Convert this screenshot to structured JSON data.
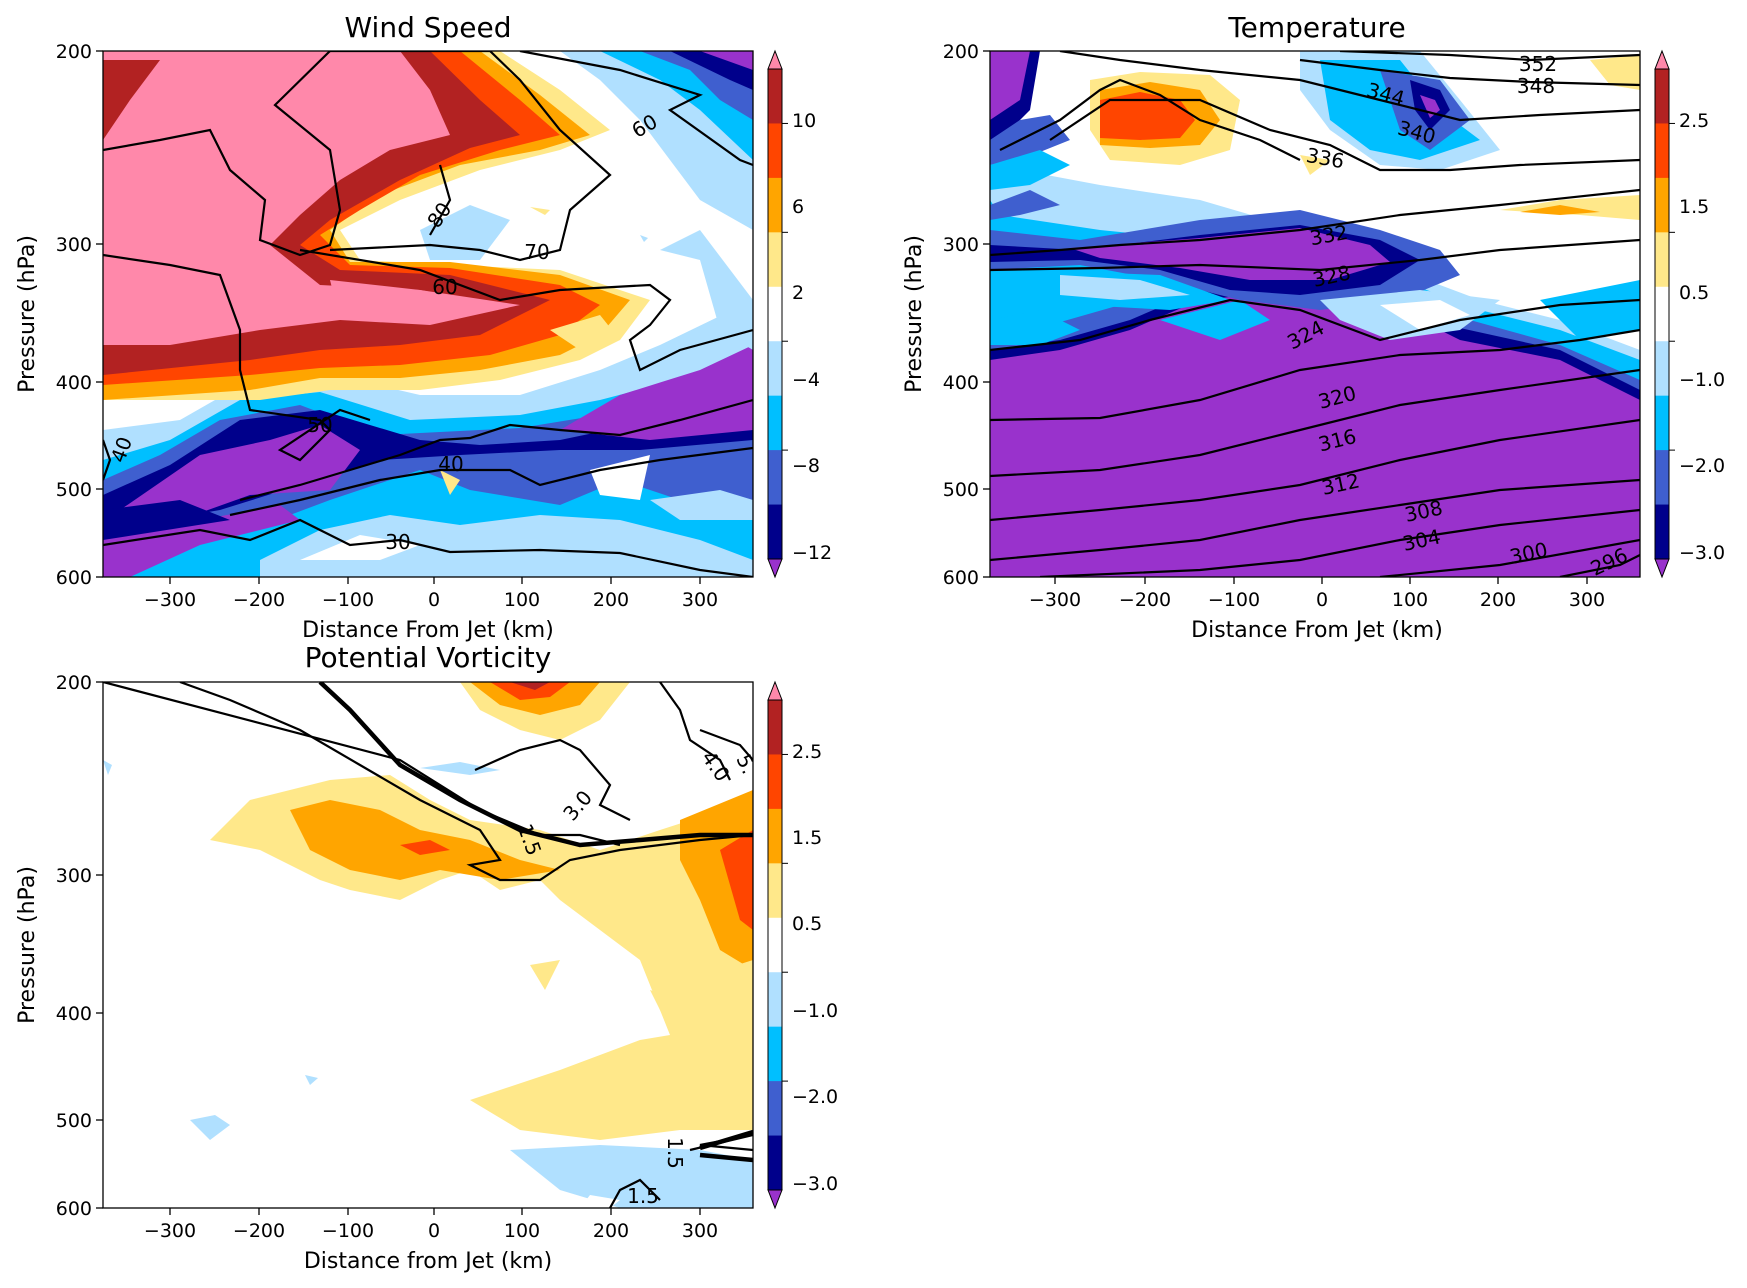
{
  "colors": {
    "levels": [
      "#9932cc",
      "#00008b",
      "#3f5fcf",
      "#00bfff",
      "#b0e0ff",
      "#ffffff",
      "#ffe88a",
      "#ffa500",
      "#ff4500",
      "#b22222",
      "#ff88aa"
    ],
    "contour": "#000000"
  },
  "panels": [
    {
      "id": "wind",
      "title": "Wind Speed",
      "xlabel": "Distance From Jet (km)",
      "ylabel": "Pressure (hPa)",
      "xticks": [
        "−300",
        "−200",
        "−100",
        "0",
        "100",
        "200",
        "300"
      ],
      "yticks": [
        "200",
        "300",
        "400",
        "500",
        "600"
      ],
      "colorbar_ticks": [
        "10",
        "6",
        "2",
        "−4",
        "−8",
        "−12"
      ],
      "contour_labels": [
        "60",
        "80",
        "70",
        "60",
        "50",
        "40",
        "40",
        "30"
      ]
    },
    {
      "id": "temp",
      "title": "Temperature",
      "xlabel": "Distance From Jet (km)",
      "ylabel": "Pressure (hPa)",
      "xticks": [
        "−300",
        "−200",
        "−100",
        "0",
        "100",
        "200",
        "300"
      ],
      "yticks": [
        "200",
        "300",
        "400",
        "500",
        "600"
      ],
      "colorbar_ticks": [
        "2.5",
        "1.5",
        "0.5",
        "−1.0",
        "−2.0",
        "−3.0"
      ],
      "contour_labels": [
        "352",
        "348",
        "344",
        "340",
        "336",
        "332",
        "328",
        "324",
        "320",
        "316",
        "312",
        "308",
        "304",
        "300",
        "296"
      ]
    },
    {
      "id": "pv",
      "title": "Potential Vorticity",
      "xlabel": "Distance from Jet (km)",
      "ylabel": "Pressure (hPa)",
      "xticks": [
        "−300",
        "−200",
        "−100",
        "0",
        "100",
        "200",
        "300"
      ],
      "yticks": [
        "200",
        "300",
        "400",
        "500",
        "600"
      ],
      "colorbar_ticks": [
        "2.5",
        "1.5",
        "0.5",
        "−1.0",
        "−2.0",
        "−3.0"
      ],
      "contour_labels": [
        "5.",
        "4.0",
        "3.0",
        "1.5",
        "1.5",
        "1.5"
      ]
    }
  ],
  "chart_data": [
    {
      "type": "heatmap",
      "title": "Wind Speed",
      "xlabel": "Distance From Jet (km)",
      "ylabel": "Pressure (hPa)",
      "xlim": [
        -370,
        360
      ],
      "ylim": [
        600,
        200
      ],
      "colorbar_levels": [
        -12,
        -10,
        -8,
        -6,
        -4,
        -1,
        2,
        4,
        6,
        8,
        10,
        12
      ],
      "colorbar_ticks": [
        10,
        6,
        2,
        -4,
        -8,
        -12
      ],
      "contour_levels": [
        30,
        40,
        50,
        60,
        70,
        80
      ]
    },
    {
      "type": "heatmap",
      "title": "Temperature",
      "xlabel": "Distance From Jet (km)",
      "ylabel": "Pressure (hPa)",
      "xlim": [
        -370,
        360
      ],
      "ylim": [
        600,
        200
      ],
      "colorbar_levels": [
        -3.0,
        -2.5,
        -2.0,
        -1.5,
        -1.0,
        -0.5,
        0.5,
        1.0,
        1.5,
        2.0,
        2.5,
        3.0
      ],
      "colorbar_ticks": [
        2.5,
        1.5,
        0.5,
        -1.0,
        -2.0,
        -3.0
      ],
      "contour_levels": [
        296,
        300,
        304,
        308,
        312,
        316,
        320,
        324,
        328,
        332,
        336,
        340,
        344,
        348,
        352
      ]
    },
    {
      "type": "heatmap",
      "title": "Potential Vorticity",
      "xlabel": "Distance from Jet (km)",
      "ylabel": "Pressure (hPa)",
      "xlim": [
        -370,
        360
      ],
      "ylim": [
        600,
        200
      ],
      "colorbar_levels": [
        -3.0,
        -2.5,
        -2.0,
        -1.5,
        -1.0,
        -0.5,
        0.5,
        1.0,
        1.5,
        2.0,
        2.5,
        3.0
      ],
      "colorbar_ticks": [
        2.5,
        1.5,
        0.5,
        -1.0,
        -2.0,
        -3.0
      ],
      "contour_levels": [
        1.5,
        2.0,
        3.0,
        4.0,
        5.0
      ]
    }
  ]
}
